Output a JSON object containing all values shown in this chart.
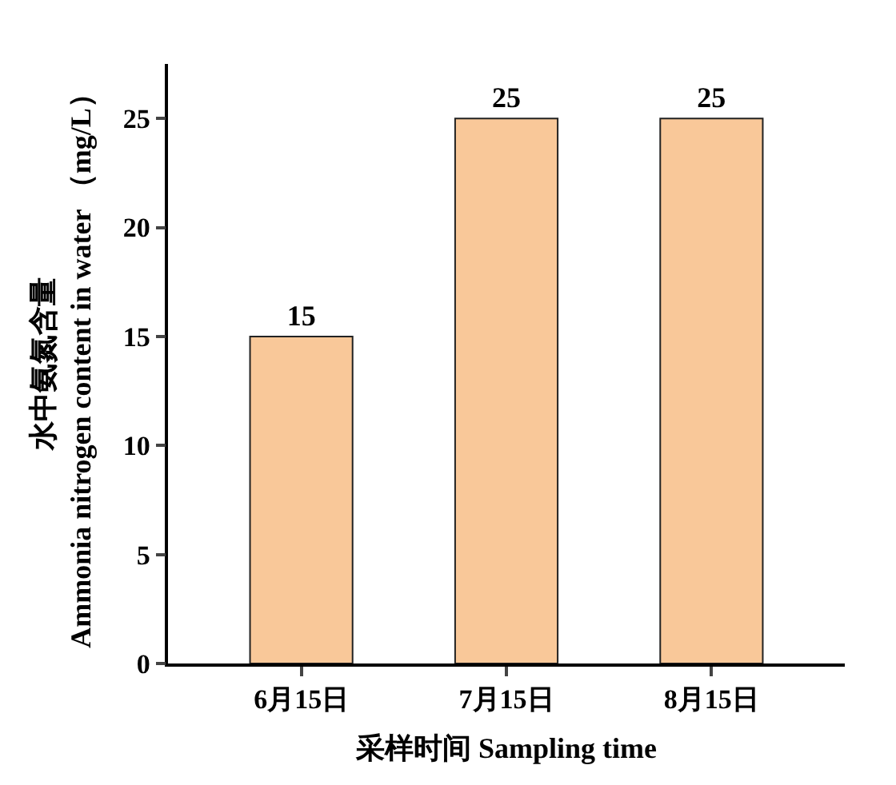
{
  "chart_data": {
    "type": "bar",
    "xlabel": "采样时间 Sampling time",
    "ylabel": "水中氨氮含量\nAmmonia nitrogen content in water （mg/L）",
    "categories": [
      "6月15日",
      "7月15日",
      "8月15日"
    ],
    "values": [
      15,
      25,
      25
    ],
    "color": "#f9c899",
    "ylim": [
      0,
      27.5
    ],
    "yticks": [
      0,
      5,
      10,
      15,
      20,
      25
    ],
    "data_labels": true
  }
}
